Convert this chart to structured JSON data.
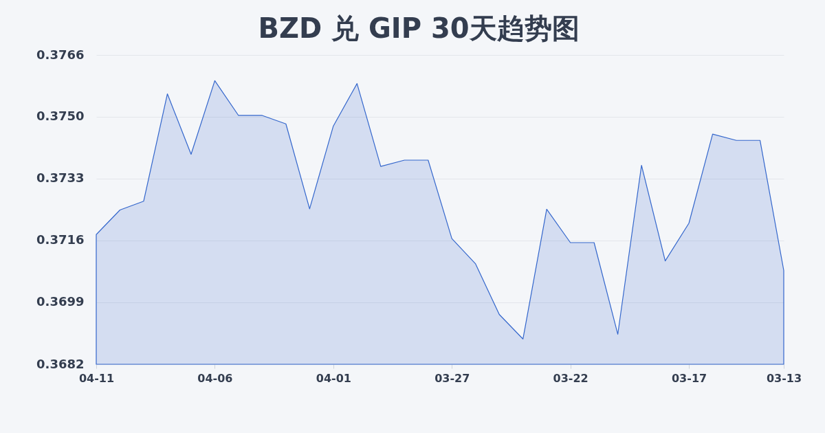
{
  "chart_data": {
    "type": "area",
    "title": "BZD 兑 GIP 30天趋势图",
    "categories": [
      "04-11",
      null,
      null,
      null,
      null,
      "04-06",
      null,
      null,
      null,
      null,
      "04-01",
      null,
      null,
      null,
      null,
      "03-27",
      null,
      null,
      null,
      null,
      "03-22",
      null,
      null,
      null,
      null,
      "03-17",
      null,
      null,
      null,
      "03-13"
    ],
    "series": [
      {
        "color": "#3366cc",
        "values": [
          0.37174,
          0.37241,
          0.37265,
          0.37558,
          0.37393,
          0.37594,
          0.37499,
          0.37499,
          0.37476,
          0.37244,
          0.3747,
          0.37586,
          0.3736,
          0.37377,
          0.37377,
          0.37163,
          0.37094,
          0.36956,
          0.36889,
          0.37243,
          0.37152,
          0.37152,
          0.36902,
          0.37363,
          0.37102,
          0.37205,
          0.37448,
          0.37431,
          0.37431,
          0.37076
        ]
      }
    ],
    "ylim": [
      0.3682,
      0.37664
    ],
    "yticks": [
      0.3682,
      {
        "value": 0.36989,
        "label": "0.3699"
      },
      {
        "value": 0.37158,
        "label": "0.3716"
      },
      {
        "value": 0.37327,
        "label": "0.3733"
      },
      {
        "value": 0.37496,
        "label": "0.3750"
      },
      {
        "value": 0.37664,
        "label": "0.3766"
      }
    ],
    "grid": "y"
  }
}
